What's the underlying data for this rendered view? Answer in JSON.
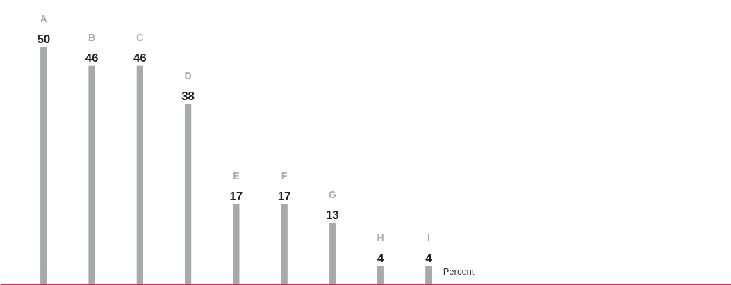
{
  "chart_data": {
    "type": "bar",
    "categories": [
      "A",
      "B",
      "C",
      "D",
      "E",
      "F",
      "G",
      "H",
      "I"
    ],
    "values": [
      50,
      46,
      46,
      38,
      17,
      17,
      13,
      4,
      4
    ],
    "color": "#a7a9ac",
    "data_labels": true,
    "grid": false,
    "tick_labels": false,
    "annotations": [
      "Percent"
    ]
  }
}
